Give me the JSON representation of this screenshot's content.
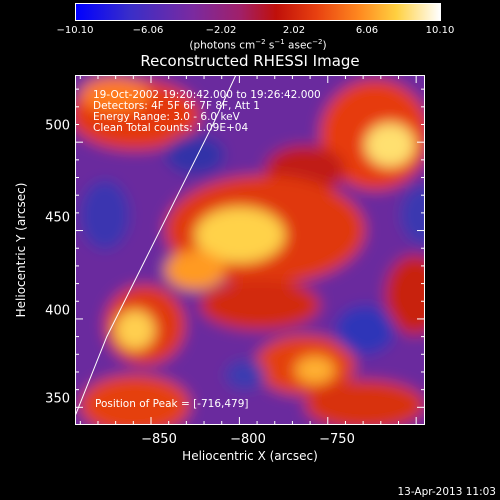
{
  "chart_data": {
    "type": "heatmap",
    "title": "Reconstructed RHESSI Image",
    "xlabel": "Heliocentric X (arcsec)",
    "ylabel": "Heliocentric Y (arcsec)",
    "x_ticks": [
      "−850",
      "−800",
      "−750"
    ],
    "x_tick_values": [
      -850,
      -800,
      -750
    ],
    "y_ticks": [
      "350",
      "400",
      "450",
      "500"
    ],
    "y_tick_values": [
      350,
      400,
      450,
      500
    ],
    "xlim": [
      -893,
      -695
    ],
    "ylim": [
      340,
      538
    ],
    "colorbar": {
      "ticks": [
        "−10.10",
        "−6.06",
        "−2.02",
        "2.02",
        "6.06",
        "10.10"
      ],
      "tick_values": [
        -10.1,
        -6.06,
        -2.02,
        2.02,
        6.06,
        10.1
      ],
      "range": [
        -10.1,
        10.1
      ],
      "label_main": "(photons cm",
      "label_sup1": "−2",
      "label_mid": " s",
      "label_sup2": "−1",
      "label_mid2": " asec",
      "label_sup3": "−2",
      "label_end": ")"
    },
    "annotations": [
      "19-Oct-2002 19:20:42.000 to 19:26:42.000",
      "Detectors: 4F 5F 6F 7F 8F, Att 1",
      "Energy Range: 3.0 - 6.0 keV",
      "Clean     Total counts: 1.09E+04"
    ],
    "peak_label": "Position of Peak = [-716,479]",
    "limb_line": [
      [
        -893,
        345
      ],
      [
        -875,
        390
      ],
      [
        -855,
        430
      ],
      [
        -835,
        470
      ],
      [
        -815,
        510
      ],
      [
        -802,
        538
      ]
    ],
    "grid": false,
    "colors": {
      "background": "#000000",
      "axes": "#ffffff"
    }
  },
  "footer_date": "13-Apr-2013 11:03"
}
